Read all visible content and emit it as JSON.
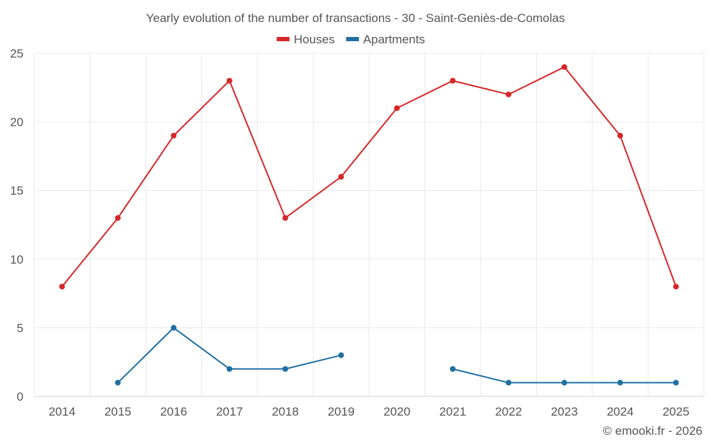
{
  "chart_data": {
    "type": "line",
    "title": "Yearly evolution of the number of transactions - 30 - Saint-Geniès-de-Comolas",
    "categories": [
      "2014",
      "2015",
      "2016",
      "2017",
      "2018",
      "2019",
      "2020",
      "2021",
      "2022",
      "2023",
      "2024",
      "2025"
    ],
    "ylim": [
      0,
      25
    ],
    "yticks": [
      0,
      5,
      10,
      15,
      20,
      25
    ],
    "xlabel": "",
    "ylabel": "",
    "grid": true,
    "legend_position": "top-center",
    "series": [
      {
        "name": "Houses",
        "color": "#d62728",
        "values": [
          8,
          13,
          19,
          23,
          13,
          16,
          21,
          23,
          22,
          24,
          19,
          8
        ]
      },
      {
        "name": "Apartments",
        "color": "#1f6fa3",
        "values": [
          null,
          1,
          5,
          2,
          2,
          3,
          null,
          2,
          1,
          1,
          1,
          1
        ]
      }
    ]
  },
  "credit": "© emooki.fr - 2026"
}
